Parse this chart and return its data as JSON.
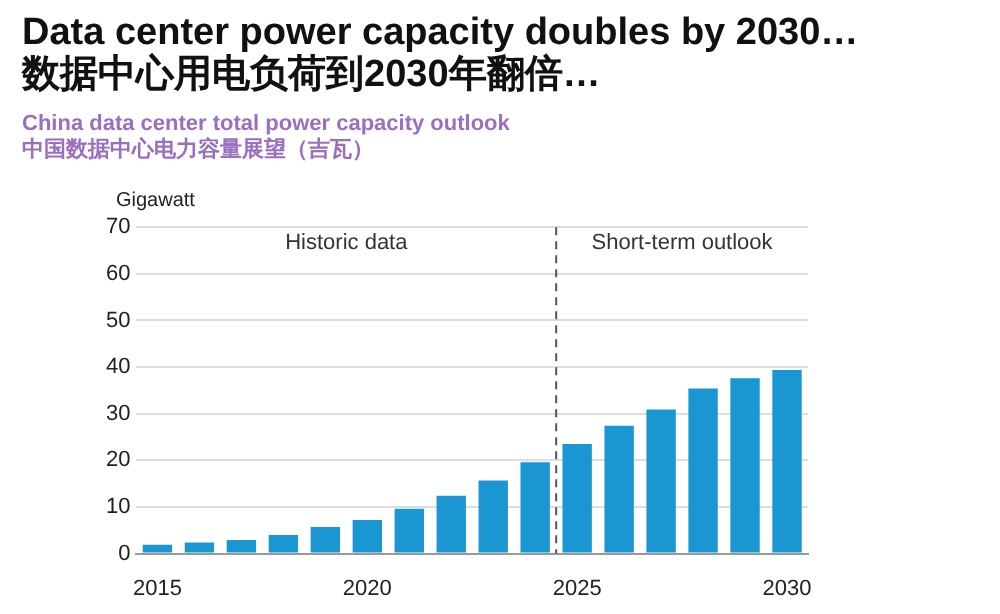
{
  "chart_data": {
    "type": "bar",
    "title": "Data center power capacity doubles by 2030…\n数据中心用电负荷到2030年翻倍…",
    "subtitle": "China data center total power capacity outlook\n中国数据中心电力容量展望（吉瓦）",
    "ylabel": "Gigawatt",
    "x": [
      2015,
      2016,
      2017,
      2018,
      2019,
      2020,
      2021,
      2022,
      2023,
      2024,
      2025,
      2026,
      2027,
      2028,
      2029,
      2030
    ],
    "values": [
      1.9,
      2.4,
      2.9,
      4.0,
      5.7,
      7.2,
      9.6,
      12.4,
      15.7,
      19.6,
      23.5,
      27.4,
      30.9,
      35.4,
      37.6,
      39.4
    ],
    "color": "#1a96d2",
    "xlim": [
      2014.5,
      2030.5
    ],
    "xticks": [
      2015,
      2020,
      2025,
      2030
    ],
    "ylim": [
      0,
      70
    ],
    "yticks": [
      0,
      10,
      20,
      30,
      40,
      50,
      60,
      70
    ],
    "grid": "y",
    "legend": false,
    "ref_lines": [
      {
        "axis": "x",
        "value": 2024.5,
        "label": null,
        "line_style": "dashed",
        "color": "#555555"
      }
    ],
    "annotations": [
      "Historic data",
      "Short-term outlook"
    ]
  }
}
